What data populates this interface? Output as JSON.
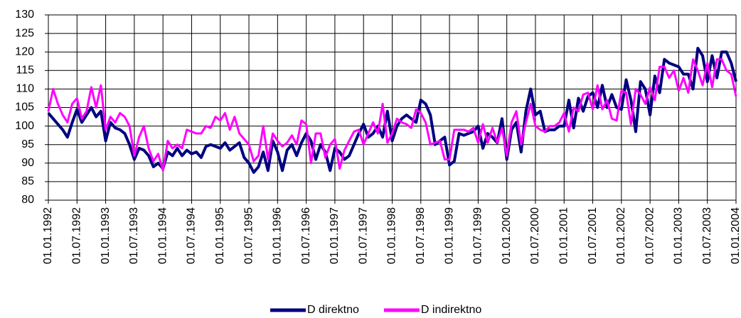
{
  "chart_data": {
    "type": "line",
    "categories": [
      "01.01.1992",
      null,
      null,
      null,
      null,
      null,
      "01.07.1992",
      null,
      null,
      null,
      null,
      null,
      "01.01.1993",
      null,
      null,
      null,
      null,
      null,
      "01.07.1993",
      null,
      null,
      null,
      null,
      null,
      "01.01.1994",
      null,
      null,
      null,
      null,
      null,
      "01.07.1994",
      null,
      null,
      null,
      null,
      null,
      "01.01.1995",
      null,
      null,
      null,
      null,
      null,
      "01.07.1995",
      null,
      null,
      null,
      null,
      null,
      "01.01.1996",
      null,
      null,
      null,
      null,
      null,
      "01.07.1996",
      null,
      null,
      null,
      null,
      null,
      "01.01.1997",
      null,
      null,
      null,
      null,
      null,
      "01.07.1997",
      null,
      null,
      null,
      null,
      null,
      "01.01.1998",
      null,
      null,
      null,
      null,
      null,
      "01.07.1998",
      null,
      null,
      null,
      null,
      null,
      "01.01.1999",
      null,
      null,
      null,
      null,
      null,
      "01.07.1999",
      null,
      null,
      null,
      null,
      null,
      "01.01.2000",
      null,
      null,
      null,
      null,
      null,
      "01.07.2000",
      null,
      null,
      null,
      null,
      null,
      "01.01.2001",
      null,
      null,
      null,
      null,
      null,
      "01.07.2001",
      null,
      null,
      null,
      null,
      null,
      "01.01.2002",
      null,
      null,
      null,
      null,
      null,
      "01.07.2002",
      null,
      null,
      null,
      null,
      null,
      "01.01.2003",
      null,
      null,
      null,
      null,
      null,
      "01.07.2003",
      null,
      null,
      null,
      null,
      null,
      "01.01.2004"
    ],
    "series": [
      {
        "name": "D direktno",
        "color": "#000080",
        "values": [
          103.5,
          102,
          100.5,
          99,
          97,
          101,
          104.5,
          101,
          103,
          105,
          102.5,
          104,
          96,
          101,
          99.5,
          99,
          98,
          95,
          91,
          94,
          93.5,
          92,
          89,
          90,
          88.5,
          93,
          92,
          94,
          92,
          93.5,
          92.5,
          93,
          91.5,
          94.5,
          95,
          94.5,
          94,
          95.5,
          93.5,
          94.5,
          95.5,
          91.5,
          90,
          87.5,
          89,
          93,
          88,
          96,
          93,
          88,
          93.5,
          95,
          92,
          95.5,
          98,
          96,
          91,
          95,
          93,
          88,
          94,
          93,
          91,
          92,
          95,
          98,
          100.5,
          97,
          98,
          100,
          97,
          104,
          96,
          100,
          102,
          103,
          102,
          101,
          107,
          106,
          103,
          95,
          96,
          97,
          89.5,
          90.5,
          98,
          97.5,
          98,
          98.5,
          100,
          94,
          98,
          97,
          95.5,
          102,
          91,
          99,
          101,
          93,
          104,
          110,
          103,
          104,
          98.5,
          99,
          99,
          100,
          100,
          107,
          99.5,
          107.5,
          104,
          108,
          109,
          105,
          111,
          105,
          108.5,
          105,
          104.5,
          112.5,
          107,
          98.5,
          112,
          110,
          103,
          113.5,
          109,
          118,
          117,
          116.5,
          116,
          114,
          114,
          110,
          121,
          119,
          112,
          119,
          113,
          120,
          120,
          117,
          112
        ]
      },
      {
        "name": "D indirektno",
        "color": "#ff00ff",
        "values": [
          104,
          110,
          106,
          103,
          101,
          106,
          107.5,
          102,
          104,
          110.5,
          105,
          111,
          99,
          102.5,
          101,
          103.5,
          102.5,
          100,
          92,
          97,
          100,
          94,
          90.5,
          92.5,
          88,
          96,
          94,
          95,
          94,
          99,
          98.5,
          98,
          98,
          100,
          99.5,
          102.5,
          101.5,
          103.5,
          99,
          102.5,
          98,
          96.5,
          95,
          90.5,
          92,
          100,
          91,
          98,
          96,
          94.5,
          95.5,
          97.5,
          95,
          101.5,
          100.5,
          90,
          98,
          98,
          91.5,
          95,
          96.5,
          88.5,
          93.5,
          96,
          98.5,
          99,
          95,
          98,
          101,
          98,
          106,
          95.5,
          98,
          102,
          101,
          100.5,
          99.5,
          104.5,
          103.5,
          101,
          95,
          95.5,
          96,
          91,
          91,
          99,
          99,
          99,
          98.5,
          99.5,
          95.5,
          100.5,
          95.5,
          99.5,
          95.5,
          99.5,
          92,
          101,
          104,
          95,
          101,
          106,
          100,
          99,
          98.5,
          100,
          100,
          101,
          103.5,
          98.5,
          105,
          104,
          108.5,
          109,
          104.5,
          111,
          104.5,
          107,
          102,
          101.5,
          109.5,
          109,
          100.5,
          110,
          108.5,
          106,
          110.5,
          107,
          116,
          116,
          113,
          115,
          109.5,
          113,
          109,
          118,
          115,
          111,
          117,
          110.5,
          118,
          118,
          115,
          114,
          108
        ]
      }
    ],
    "ylim": [
      80,
      130
    ],
    "yticks": [
      80,
      85,
      90,
      95,
      100,
      105,
      110,
      115,
      120,
      125,
      130
    ],
    "grid": true,
    "legend": "bottom"
  }
}
